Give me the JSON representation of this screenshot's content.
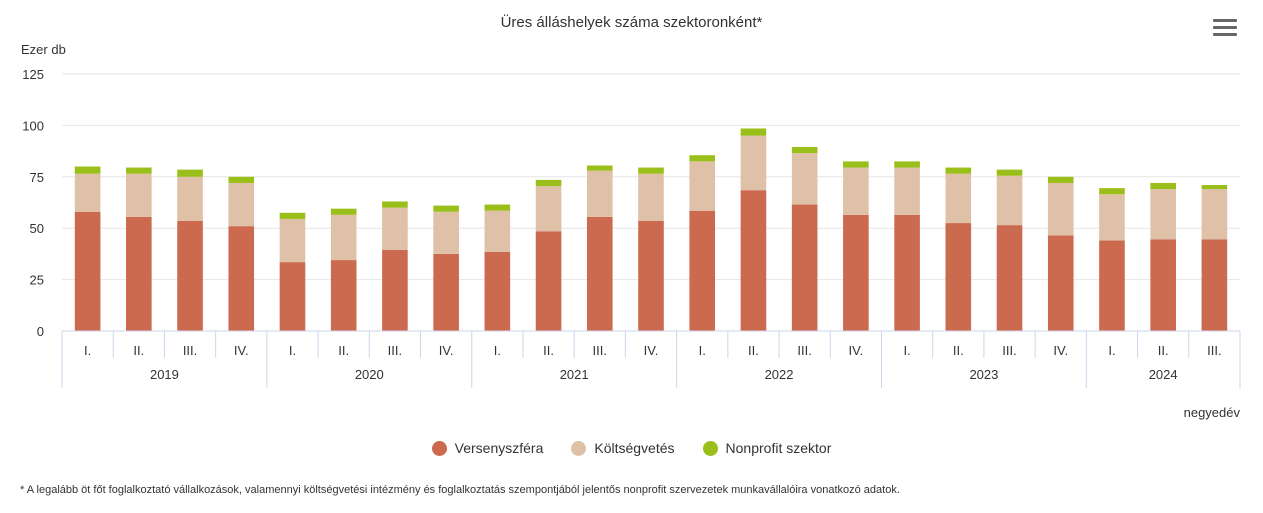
{
  "chart_data": {
    "type": "bar",
    "stacked": true,
    "title": "Üres álláshelyek száma szektoronként*",
    "ylabel": "Ezer db",
    "xlabel": "negyedév",
    "ylim": [
      0,
      125
    ],
    "yticks": [
      0,
      25,
      50,
      75,
      100,
      125
    ],
    "grid": true,
    "legend_position": "bottom-center",
    "groups": [
      {
        "label": "2019",
        "quarters": [
          "I.",
          "II.",
          "III.",
          "IV."
        ]
      },
      {
        "label": "2020",
        "quarters": [
          "I.",
          "II.",
          "III.",
          "IV."
        ]
      },
      {
        "label": "2021",
        "quarters": [
          "I.",
          "II.",
          "III.",
          "IV."
        ]
      },
      {
        "label": "2022",
        "quarters": [
          "I.",
          "II.",
          "III.",
          "IV."
        ]
      },
      {
        "label": "2023",
        "quarters": [
          "I.",
          "II.",
          "III.",
          "IV."
        ]
      },
      {
        "label": "2024",
        "quarters": [
          "I.",
          "II.",
          "III."
        ]
      }
    ],
    "series": [
      {
        "name": "Versenyszféra",
        "color": "#cc6a50",
        "values": [
          58,
          55.5,
          53.5,
          51,
          33.5,
          34.5,
          39.5,
          37.5,
          38.5,
          48.5,
          55.5,
          53.5,
          58.5,
          68.5,
          61.5,
          56.5,
          56.5,
          52.5,
          51.5,
          46.5,
          44,
          44.5,
          44.5
        ]
      },
      {
        "name": "Költségvetés",
        "color": "#dfc1a8",
        "values": [
          18.5,
          21,
          21.5,
          21,
          21,
          22,
          20.5,
          20.5,
          20,
          22,
          22.5,
          23,
          24,
          26.5,
          25,
          23,
          23,
          24,
          24,
          25.5,
          22.5,
          24.5,
          24.5
        ]
      },
      {
        "name": "Nonprofit szektor",
        "color": "#9bbf1a",
        "values": [
          3.5,
          3,
          3.5,
          3,
          3,
          3,
          3,
          3,
          3,
          3,
          2.5,
          3,
          3,
          3.5,
          3,
          3,
          3,
          3,
          3,
          3,
          3,
          3,
          2
        ]
      }
    ]
  },
  "menu_icon": "hamburger-menu-icon",
  "footnote": "* A legalább öt főt foglalkoztató vállalkozások, valamennyi költségvetési intézmény és foglalkoztatás szempontjából jelentős nonprofit szervezetek munkavállalóira vonatkozó adatok."
}
